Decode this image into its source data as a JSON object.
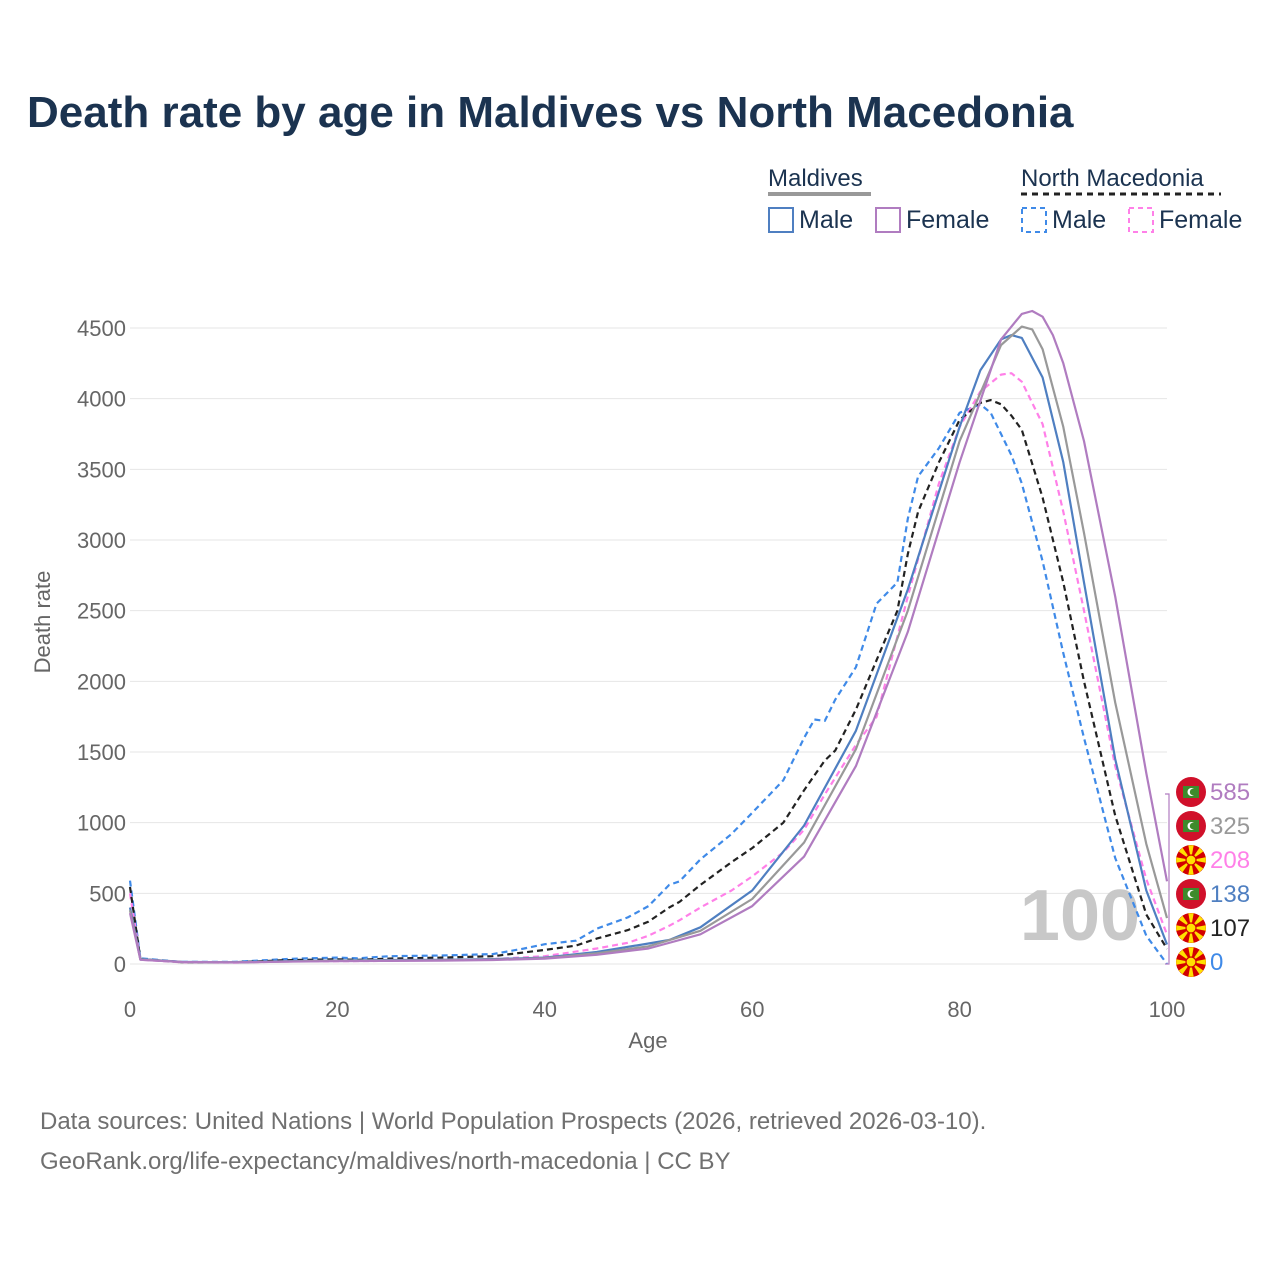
{
  "title": "Death rate by age in Maldives vs North Macedonia",
  "source_line1": "Data sources: United Nations | World Population Prospects (2026, retrieved 2026-03-10).",
  "source_line2": "GeoRank.org/life-expectancy/maldives/north-macedonia | CC BY",
  "watermark": "100",
  "legend": {
    "group1": "Maldives",
    "group2": "North Macedonia",
    "male": "Male",
    "female": "Female"
  },
  "colors": {
    "maldives_male": "#4f7fc1",
    "maldives_female": "#b07cc0",
    "maldives_total": "#999999",
    "nm_male": "#3f8ae8",
    "nm_female": "#ff80e8",
    "nm_total": "#222222",
    "flag_red": "#d0102a",
    "flag_green": "#3d8b2c",
    "flag_yellow": "#ffe000",
    "nm_flag_red": "#d20000"
  },
  "chart_data": {
    "type": "line",
    "title": "Death rate by age in Maldives vs North Macedonia",
    "xlabel": "Age",
    "ylabel": "Death rate",
    "xlim": [
      0,
      100
    ],
    "ylim": [
      0,
      4500
    ],
    "xticks": [
      0,
      20,
      40,
      60,
      80,
      100
    ],
    "yticks": [
      0,
      500,
      1000,
      1500,
      2000,
      2500,
      3000,
      3500,
      4000,
      4500
    ],
    "grid": true,
    "series": [
      {
        "name": "Maldives Male",
        "key": "maldives_male",
        "dash": false,
        "end_value": "138",
        "x": [
          0,
          1,
          5,
          10,
          15,
          20,
          25,
          30,
          35,
          40,
          45,
          50,
          52,
          55,
          60,
          65,
          70,
          75,
          80,
          82,
          84,
          85,
          86,
          88,
          90,
          92,
          95,
          98,
          100
        ],
        "y": [
          400,
          35,
          15,
          12,
          20,
          25,
          28,
          30,
          35,
          45,
          85,
          145,
          170,
          260,
          520,
          980,
          1650,
          2650,
          3800,
          4200,
          4420,
          4450,
          4430,
          4150,
          3550,
          2700,
          1450,
          520,
          138
        ]
      },
      {
        "name": "Maldives Female",
        "key": "maldives_female",
        "dash": false,
        "end_value": "585",
        "x": [
          0,
          1,
          5,
          10,
          15,
          20,
          25,
          30,
          35,
          40,
          45,
          50,
          55,
          60,
          65,
          70,
          75,
          80,
          84,
          86,
          87,
          88,
          89,
          90,
          92,
          95,
          98,
          100
        ],
        "y": [
          360,
          30,
          14,
          11,
          16,
          20,
          22,
          24,
          28,
          38,
          65,
          110,
          210,
          410,
          760,
          1400,
          2350,
          3550,
          4420,
          4600,
          4620,
          4580,
          4450,
          4250,
          3700,
          2600,
          1350,
          585
        ]
      },
      {
        "name": "Maldives Total",
        "key": "maldives_total",
        "dash": false,
        "end_value": "325",
        "x": [
          0,
          1,
          5,
          10,
          15,
          20,
          25,
          30,
          35,
          40,
          45,
          50,
          55,
          60,
          65,
          70,
          75,
          80,
          84,
          86,
          87,
          88,
          90,
          92,
          95,
          98,
          100
        ],
        "y": [
          380,
          32,
          14,
          12,
          18,
          23,
          25,
          27,
          31,
          42,
          75,
          125,
          235,
          460,
          860,
          1520,
          2500,
          3700,
          4380,
          4510,
          4490,
          4350,
          3800,
          3050,
          1850,
          850,
          325
        ]
      },
      {
        "name": "North Macedonia Male",
        "key": "nm_male",
        "dash": true,
        "end_value": "0",
        "x": [
          0,
          1,
          5,
          10,
          15,
          17,
          20,
          22,
          25,
          30,
          35,
          38,
          40,
          43,
          45,
          48,
          50,
          52,
          53,
          55,
          58,
          60,
          63,
          65,
          66,
          67,
          68,
          70,
          72,
          74,
          75,
          76,
          78,
          80,
          82,
          83,
          85,
          86,
          88,
          90,
          92,
          95,
          98,
          100
        ],
        "y": [
          590,
          40,
          15,
          15,
          35,
          40,
          45,
          40,
          55,
          60,
          70,
          110,
          140,
          165,
          250,
          330,
          410,
          560,
          585,
          740,
          920,
          1070,
          1300,
          1600,
          1730,
          1720,
          1870,
          2100,
          2550,
          2700,
          3150,
          3450,
          3650,
          3900,
          3960,
          3900,
          3600,
          3400,
          2850,
          2200,
          1600,
          750,
          200,
          0
        ]
      },
      {
        "name": "North Macedonia Female",
        "key": "nm_female",
        "dash": true,
        "end_value": "208",
        "x": [
          0,
          1,
          5,
          10,
          15,
          20,
          25,
          30,
          35,
          40,
          45,
          48,
          50,
          52,
          53,
          55,
          58,
          60,
          63,
          65,
          67,
          70,
          72,
          75,
          78,
          80,
          82,
          84,
          85,
          86,
          88,
          90,
          92,
          95,
          98,
          100
        ],
        "y": [
          500,
          30,
          12,
          10,
          18,
          20,
          22,
          28,
          35,
          55,
          110,
          150,
          200,
          270,
          310,
          400,
          520,
          620,
          790,
          950,
          1200,
          1550,
          1750,
          2600,
          3400,
          3800,
          4050,
          4170,
          4180,
          4120,
          3820,
          3200,
          2500,
          1400,
          600,
          208
        ]
      },
      {
        "name": "North Macedonia Total",
        "key": "nm_total",
        "dash": true,
        "end_value": "107",
        "x": [
          0,
          1,
          5,
          10,
          15,
          20,
          22,
          25,
          30,
          35,
          40,
          43,
          45,
          48,
          50,
          52,
          53,
          55,
          58,
          60,
          63,
          65,
          67,
          68,
          70,
          72,
          74,
          75,
          76,
          78,
          80,
          82,
          83,
          84,
          85,
          86,
          88,
          90,
          92,
          95,
          98,
          100
        ],
        "y": [
          545,
          35,
          13,
          12,
          27,
          33,
          30,
          38,
          45,
          55,
          100,
          130,
          180,
          240,
          300,
          400,
          440,
          560,
          720,
          820,
          1000,
          1230,
          1440,
          1510,
          1800,
          2150,
          2500,
          2900,
          3200,
          3550,
          3850,
          3970,
          3990,
          3960,
          3880,
          3780,
          3300,
          2700,
          2000,
          1050,
          350,
          107
        ]
      }
    ]
  }
}
